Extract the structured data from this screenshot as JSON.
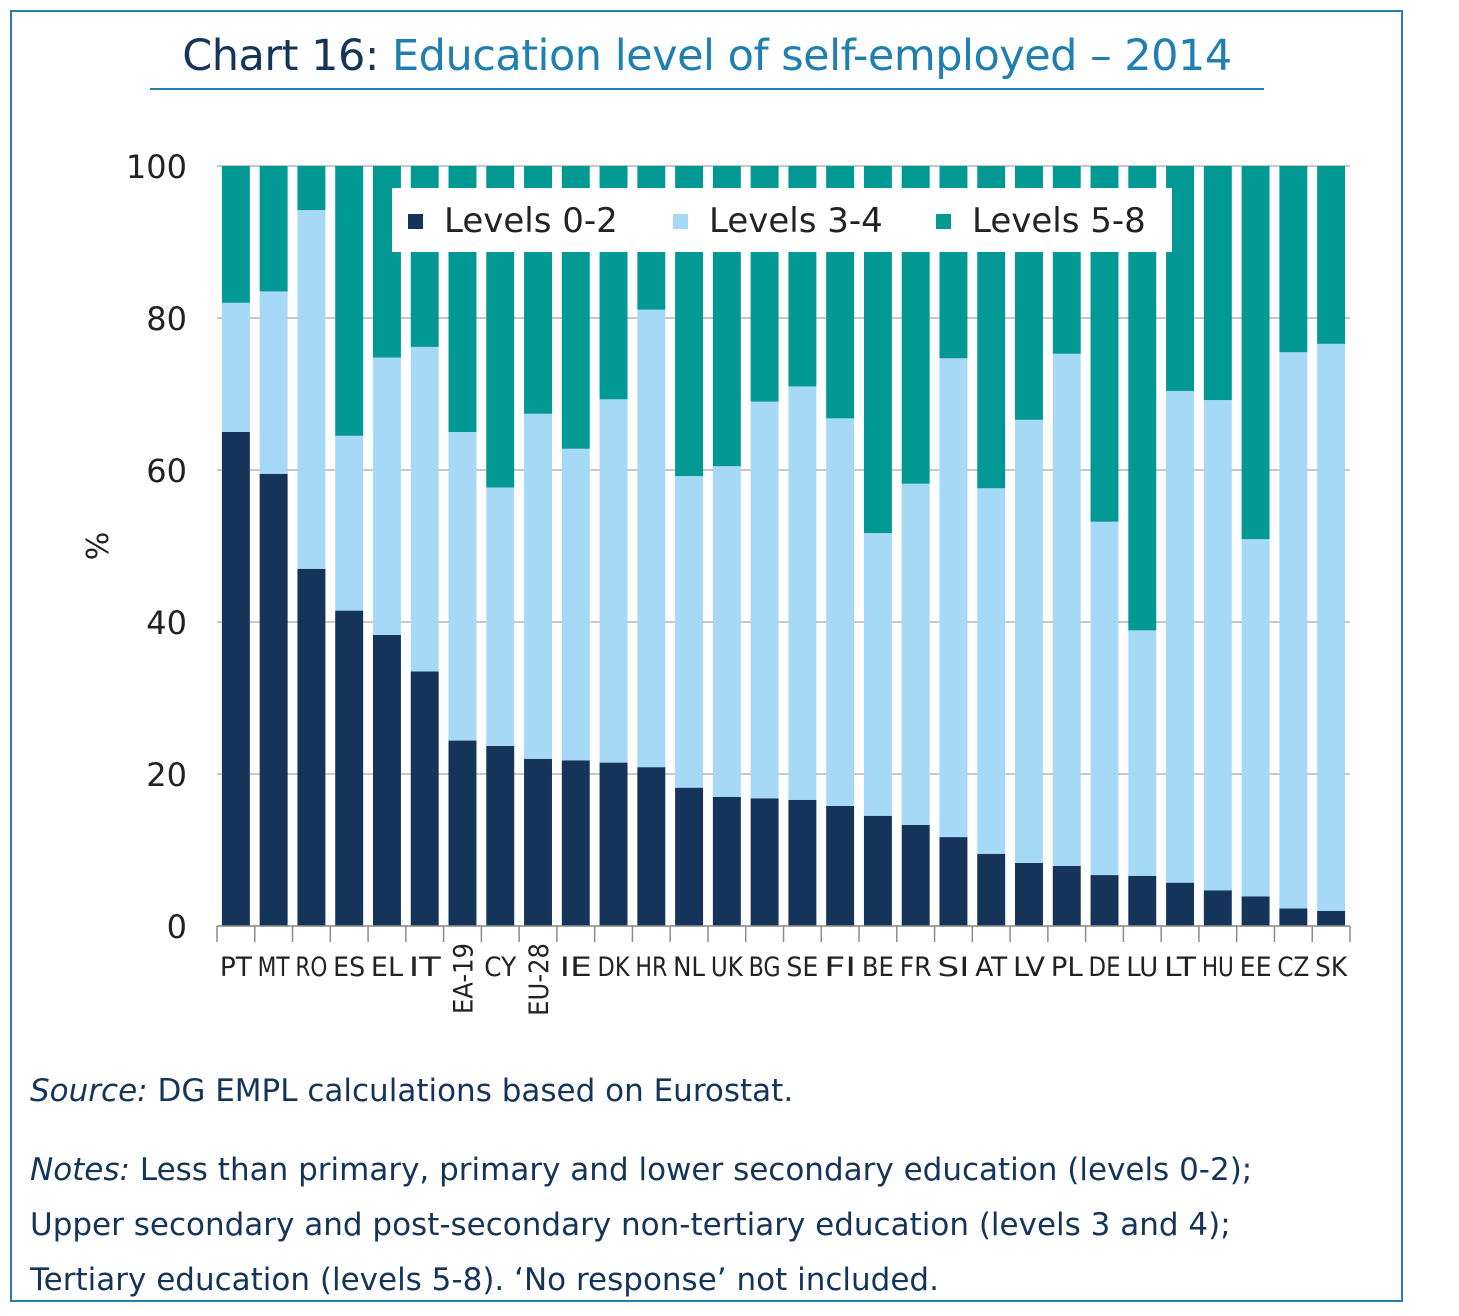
{
  "header": {
    "title_prefix": "Chart 16:",
    "title_main": "Education level of self-employed – 2014"
  },
  "chart_data": {
    "type": "bar",
    "stacked": true,
    "ylabel": "%",
    "ylim": [
      0,
      100
    ],
    "yticks": [
      0,
      20,
      40,
      60,
      80,
      100
    ],
    "grid": true,
    "legend_position": "top-center",
    "categories": [
      "PT",
      "MT",
      "RO",
      "ES",
      "EL",
      "IT",
      "EA-19",
      "CY",
      "EU-28",
      "IE",
      "DK",
      "HR",
      "NL",
      "UK",
      "BG",
      "SE",
      "FI",
      "BE",
      "FR",
      "SI",
      "AT",
      "LV",
      "PL",
      "DE",
      "LU",
      "LT",
      "HU",
      "EE",
      "CZ",
      "SK"
    ],
    "series": [
      {
        "name": "Levels 0-2",
        "color": "#14345a",
        "values": [
          65.0,
          59.5,
          47.0,
          41.5,
          38.3,
          33.5,
          24.4,
          23.7,
          22.0,
          21.8,
          21.5,
          20.9,
          18.2,
          17.0,
          16.8,
          16.6,
          15.8,
          14.5,
          13.3,
          11.7,
          9.5,
          8.3,
          7.9,
          6.7,
          6.6,
          5.7,
          4.7,
          3.9,
          2.3,
          2.0
        ]
      },
      {
        "name": "Levels 3-4",
        "color": "#a6d9f5",
        "values": [
          17.0,
          24.0,
          47.2,
          23.0,
          36.5,
          42.7,
          40.6,
          34.0,
          45.4,
          41.0,
          47.8,
          60.2,
          41.0,
          43.5,
          52.2,
          54.4,
          51.0,
          37.2,
          44.9,
          63.0,
          48.1,
          58.3,
          67.4,
          46.5,
          32.3,
          64.7,
          64.5,
          47.0,
          73.2,
          74.6
        ]
      },
      {
        "name": "Levels 5-8",
        "color": "#029994",
        "values": [
          18.0,
          16.5,
          5.8,
          35.5,
          25.2,
          23.8,
          35.0,
          42.3,
          32.6,
          37.2,
          30.7,
          18.9,
          40.8,
          39.5,
          31.0,
          29.0,
          33.2,
          48.3,
          41.8,
          25.3,
          42.4,
          33.4,
          24.7,
          46.8,
          61.1,
          29.6,
          30.8,
          49.1,
          24.5,
          23.4
        ]
      }
    ]
  },
  "footer": {
    "source_label": "Source:",
    "source_text": " DG EMPL calculations based on Eurostat.",
    "notes_label": "Notes:",
    "notes_line1": " Less than primary, primary and lower secondary education (levels 0-2);",
    "notes_line2": "Upper secondary and post-secondary non-tertiary education (levels 3 and 4);",
    "notes_line3": "Tertiary education (levels 5-8). ‘No response’ not included."
  }
}
